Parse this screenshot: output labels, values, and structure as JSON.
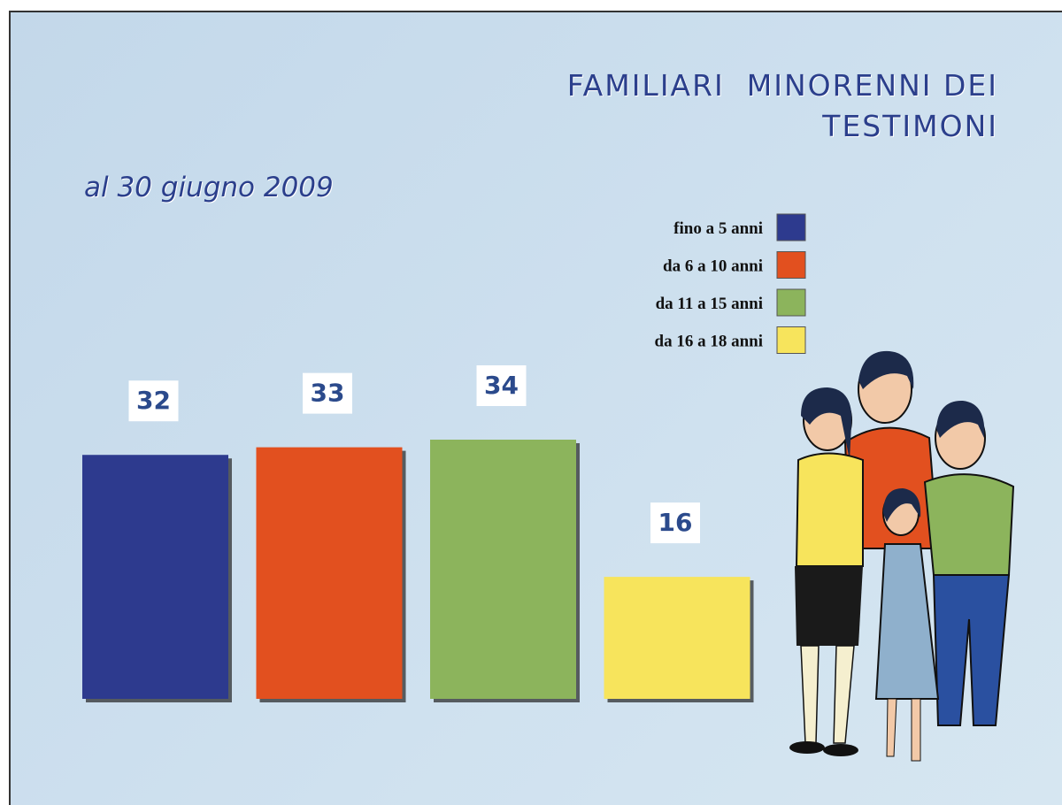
{
  "chart_data": {
    "type": "bar",
    "title": "FAMILIARI  MINORENNI DEI TESTIMONI",
    "subtitle": "al 30 giugno 2009",
    "series": [
      {
        "name": "fino a 5 anni",
        "color": "#2d3a8e",
        "values": [
          32
        ]
      },
      {
        "name": "da 6 a 10 anni",
        "color": "#e2501f",
        "values": [
          33
        ]
      },
      {
        "name": "da 11 a 15 anni",
        "color": "#8cb45c",
        "values": [
          34
        ]
      },
      {
        "name": "da 16 a 18 anni",
        "color": "#f7e45c",
        "values": [
          16
        ]
      }
    ],
    "legend": "top-right"
  }
}
